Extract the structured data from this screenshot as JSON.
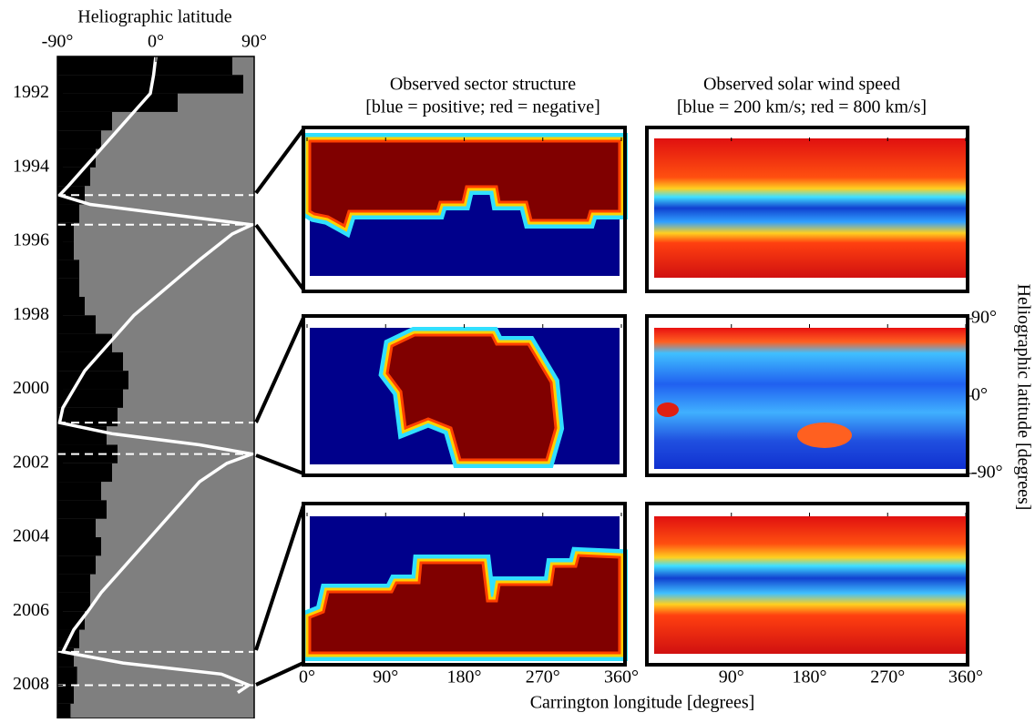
{
  "chart_data": [
    {
      "type": "profile",
      "title": "Heliographic latitude",
      "xlim": [
        -90,
        90
      ],
      "xticks": [
        {
          "value": -90,
          "label": "-90°"
        },
        {
          "value": 0,
          "label": "0°"
        },
        {
          "value": 90,
          "label": "90°"
        }
      ],
      "ylim": [
        1991,
        2008.9
      ],
      "yticks": [
        1992,
        1994,
        1996,
        1998,
        2000,
        2002,
        2004,
        2006,
        2008
      ],
      "background": "#7f7f7f",
      "bars": {
        "color": "#000000",
        "years": [
          1991,
          1991.5,
          1992,
          1992.5,
          1993,
          1993.5,
          1994,
          1994.5,
          1995,
          1995.5,
          1996,
          1996.5,
          1997,
          1997.5,
          1998,
          1998.5,
          1999,
          1999.5,
          2000,
          2000.5,
          2001,
          2001.5,
          2002,
          2002.5,
          2003,
          2003.5,
          2004,
          2004.5,
          2005,
          2005.5,
          2006,
          2006.5,
          2007,
          2007.5,
          2008,
          2008.5
        ],
        "values": [
          70,
          80,
          20,
          -40,
          -50,
          -55,
          -60,
          -65,
          -70,
          -75,
          -75,
          -70,
          -70,
          -65,
          -55,
          -40,
          -30,
          -25,
          -30,
          -35,
          -45,
          -35,
          -40,
          -50,
          -45,
          -55,
          -50,
          -55,
          -60,
          -60,
          -65,
          -70,
          -75,
          -72,
          -75,
          -78
        ]
      },
      "line": {
        "color": "#ffffff",
        "years": [
          1991,
          1991.5,
          1992,
          1992.5,
          1993,
          1993.5,
          1994,
          1994.5,
          1994.75,
          1995,
          1995.3,
          1995.55,
          1995.8,
          1996.5,
          1997,
          1997.5,
          1998,
          1998.5,
          1999,
          1999.5,
          2000,
          2000.5,
          2000.9,
          2001.2,
          2001.5,
          2001.75,
          2002,
          2002.5,
          2003,
          2003.5,
          2004,
          2004.5,
          2005,
          2005.5,
          2006,
          2006.5,
          2007.1,
          2007.4,
          2007.7,
          2008,
          2008.2
        ],
        "values": [
          0,
          -2,
          -5,
          -20,
          -35,
          -50,
          -65,
          -80,
          -88,
          -60,
          20,
          88,
          70,
          40,
          20,
          0,
          -20,
          -35,
          -50,
          -65,
          -75,
          -85,
          -88,
          -40,
          40,
          88,
          65,
          40,
          25,
          10,
          -5,
          -20,
          -35,
          -50,
          -62,
          -75,
          -85,
          -30,
          60,
          85,
          75
        ]
      },
      "dashed_years": [
        1994.75,
        1995.55,
        2000.9,
        2001.75,
        2007.1,
        2008
      ]
    },
    {
      "type": "panels",
      "column_titles": [
        [
          "Observed sector structure",
          "[blue = positive; red = negative]"
        ],
        [
          "Observed solar wind speed",
          "[blue = 200 km/s; red = 800 km/s]"
        ]
      ],
      "xlabel": "Carrington longitude [degrees]",
      "ylabel": "Heliographic latitude [degrees]",
      "xlim": [
        0,
        360
      ],
      "sector_xticks": [
        {
          "value": 0,
          "label": "0°"
        },
        {
          "value": 90,
          "label": "90°"
        },
        {
          "value": 180,
          "label": "180°"
        },
        {
          "value": 270,
          "label": "270°"
        },
        {
          "value": 360,
          "label": "360°"
        }
      ],
      "wind_xticks": [
        {
          "value": 90,
          "label": "90°"
        },
        {
          "value": 180,
          "label": "180°"
        },
        {
          "value": 270,
          "label": "270°"
        },
        {
          "value": 360,
          "label": "360°"
        }
      ],
      "ylim": [
        -90,
        90
      ],
      "yticks": [
        {
          "value": 90,
          "label": "90°"
        },
        {
          "value": 0,
          "label": "0°"
        },
        {
          "value": -90,
          "label": "-90°"
        }
      ]
    }
  ]
}
